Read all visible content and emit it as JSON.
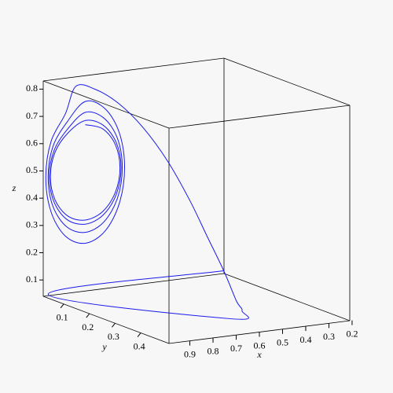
{
  "chart_data": {
    "type": "line3d",
    "x_label": "x",
    "y_label": "y",
    "z_label": "z",
    "xlim": [
      0.21,
      0.99
    ],
    "ylim": [
      0.02,
      0.51
    ],
    "zlim": [
      0.04,
      0.83
    ],
    "x_reversed": true,
    "xticks": [
      0.2,
      0.3,
      0.4,
      0.5,
      0.6,
      0.7,
      0.8,
      0.9
    ],
    "yticks": [
      0.1,
      0.2,
      0.3,
      0.4
    ],
    "zticks": [
      0.1,
      0.2,
      0.3,
      0.4,
      0.5,
      0.6,
      0.7,
      0.8
    ],
    "grid": false,
    "series": [
      {
        "color": "#1a1aee",
        "x": [
          0.21,
          0.98,
          0.6,
          0.52,
          0.5,
          0.52,
          0.55,
          0.58,
          0.62,
          0.67,
          0.73,
          0.8,
          0.86,
          0.905,
          0.967,
          0.99,
          0.967,
          0.905,
          0.82,
          0.735,
          0.673,
          0.65,
          0.673,
          0.735,
          0.82,
          0.9,
          0.959,
          0.98,
          0.959,
          0.9,
          0.82,
          0.74,
          0.681,
          0.66,
          0.681,
          0.74,
          0.82,
          0.898,
          0.954,
          0.975,
          0.954,
          0.898,
          0.82,
          0.743,
          0.686,
          0.665,
          0.686,
          0.743,
          0.82,
          0.895,
          0.95,
          0.97,
          0.95,
          0.895,
          0.82,
          0.745,
          0.69,
          0.67,
          0.69,
          0.745,
          0.82
        ],
        "y": [
          0.02,
          0.03,
          0.4,
          0.37,
          0.33,
          0.3,
          0.26,
          0.22,
          0.17,
          0.12,
          0.08,
          0.05,
          0.03,
          0.03,
          0.03,
          0.03,
          0.03,
          0.03,
          0.03,
          0.03,
          0.03,
          0.03,
          0.03,
          0.03,
          0.03,
          0.03,
          0.03,
          0.03,
          0.03,
          0.03,
          0.03,
          0.03,
          0.03,
          0.03,
          0.03,
          0.03,
          0.03,
          0.03,
          0.03,
          0.03,
          0.03,
          0.03,
          0.03,
          0.03,
          0.03,
          0.03,
          0.03,
          0.03,
          0.03,
          0.03,
          0.03,
          0.03,
          0.03,
          0.03,
          0.03,
          0.03,
          0.03,
          0.03,
          0.03,
          0.03,
          0.03
        ],
        "z": [
          0.05,
          0.05,
          0.05,
          0.06,
          0.08,
          0.18,
          0.3,
          0.42,
          0.55,
          0.66,
          0.74,
          0.79,
          0.8,
          0.705,
          0.61,
          0.48,
          0.35,
          0.255,
          0.22,
          0.255,
          0.35,
          0.48,
          0.61,
          0.705,
          0.74,
          0.671,
          0.59,
          0.48,
          0.37,
          0.289,
          0.26,
          0.289,
          0.37,
          0.48,
          0.59,
          0.671,
          0.7,
          0.645,
          0.575,
          0.48,
          0.385,
          0.315,
          0.29,
          0.315,
          0.385,
          0.48,
          0.575,
          0.645,
          0.67,
          0.632,
          0.568,
          0.48,
          0.393,
          0.328,
          0.305,
          0.328,
          0.393,
          0.48,
          0.568,
          0.632,
          0.655
        ]
      }
    ]
  }
}
